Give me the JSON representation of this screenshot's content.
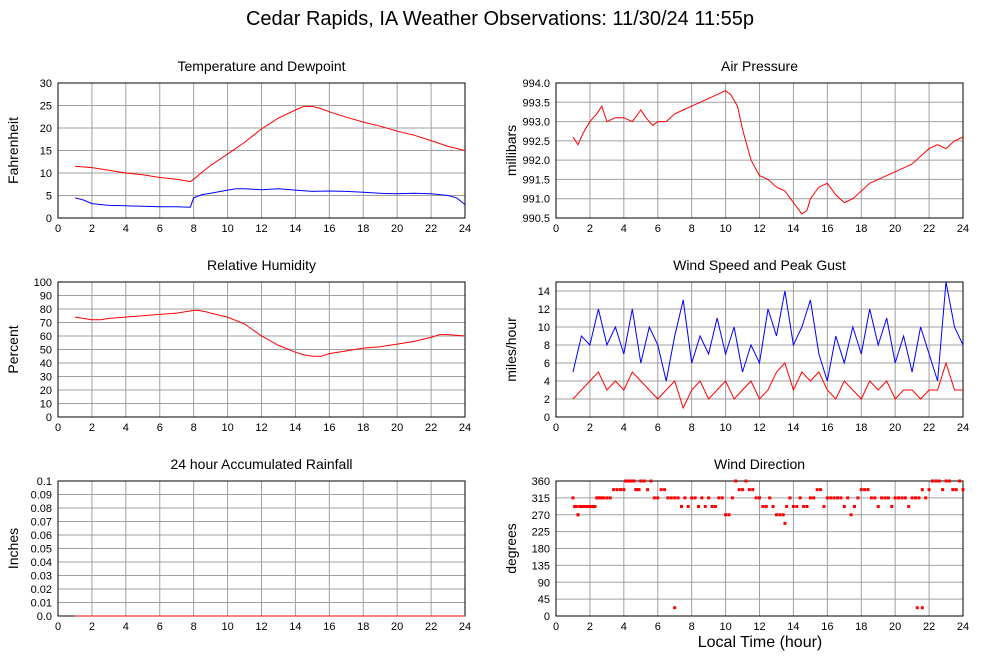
{
  "title": "Cedar Rapids, IA Weather Observations: 11/30/24 11:55p",
  "xlabel": "Local Time (hour)",
  "colors": {
    "red": "#ff0000",
    "blue": "#0000ff",
    "grid": "#a0a0a0"
  },
  "chart_data": [
    {
      "id": "temp",
      "type": "line",
      "title": "Temperature and Dewpoint",
      "ylabel": "Fahrenheit",
      "xlim": [
        0,
        24
      ],
      "ylim": [
        0,
        30
      ],
      "x_ticks": [
        0,
        2,
        4,
        6,
        8,
        10,
        12,
        14,
        16,
        18,
        20,
        22,
        24
      ],
      "y_ticks": [
        "0",
        "5",
        "10",
        "15",
        "20",
        "25",
        "30"
      ],
      "grid": true,
      "series": [
        {
          "color": "red",
          "x": [
            1,
            2,
            3,
            4,
            5,
            6,
            7,
            7.8,
            8,
            8.5,
            9,
            10,
            11,
            12,
            13,
            14,
            14.5,
            15,
            15.5,
            16,
            17,
            18,
            19,
            20,
            21,
            22,
            23,
            24
          ],
          "values": [
            11.5,
            11.2,
            10.6,
            10.0,
            9.6,
            9.0,
            8.6,
            8.1,
            8.6,
            10.2,
            11.7,
            14.2,
            16.8,
            19.8,
            22.2,
            24.0,
            24.8,
            24.8,
            24.3,
            23.6,
            22.4,
            21.3,
            20.4,
            19.3,
            18.4,
            17.2,
            15.9,
            15.0
          ]
        },
        {
          "color": "blue",
          "x": [
            1,
            1.5,
            2,
            3,
            4,
            5,
            6,
            7,
            7.8,
            8,
            8.5,
            9,
            10,
            10.5,
            11,
            12,
            13,
            14,
            15,
            16,
            17,
            18,
            19,
            20,
            21,
            22,
            23,
            23.5,
            24
          ],
          "values": [
            4.5,
            4.0,
            3.2,
            2.8,
            2.7,
            2.6,
            2.5,
            2.5,
            2.4,
            4.5,
            5.2,
            5.5,
            6.2,
            6.5,
            6.5,
            6.3,
            6.5,
            6.2,
            5.9,
            6.0,
            5.9,
            5.7,
            5.5,
            5.4,
            5.5,
            5.4,
            5.0,
            4.5,
            3.0
          ]
        }
      ]
    },
    {
      "id": "pres",
      "type": "line",
      "title": "Air Pressure",
      "ylabel": "millibars",
      "xlim": [
        0,
        24
      ],
      "ylim": [
        990.5,
        994.0
      ],
      "x_ticks": [
        0,
        2,
        4,
        6,
        8,
        10,
        12,
        14,
        16,
        18,
        20,
        22,
        24
      ],
      "y_ticks": [
        "990.5",
        "991.0",
        "991.5",
        "992.0",
        "992.5",
        "993.0",
        "993.5",
        "994.0"
      ],
      "grid": true,
      "series": [
        {
          "color": "red",
          "x": [
            1,
            1.3,
            1.6,
            2,
            2.4,
            2.7,
            3,
            3.5,
            4,
            4.5,
            5,
            5.3,
            5.7,
            6,
            6.5,
            7,
            7.5,
            8,
            8.5,
            9,
            9.5,
            10,
            10.3,
            10.7,
            11,
            11.5,
            12,
            12.5,
            13,
            13.5,
            14,
            14.5,
            14.8,
            15,
            15.5,
            16,
            16.5,
            17,
            17.5,
            18,
            18.5,
            19,
            19.5,
            20,
            20.5,
            21,
            21.5,
            22,
            22.5,
            23,
            23.5,
            24
          ],
          "values": [
            992.6,
            992.4,
            992.7,
            993.0,
            993.2,
            993.4,
            993.0,
            993.1,
            993.1,
            993.0,
            993.3,
            993.1,
            992.9,
            993.0,
            993.0,
            993.2,
            993.3,
            993.4,
            993.5,
            993.6,
            993.7,
            993.8,
            993.7,
            993.4,
            992.8,
            992.0,
            991.6,
            991.5,
            991.3,
            991.2,
            990.9,
            990.6,
            990.7,
            991.0,
            991.3,
            991.4,
            991.1,
            990.9,
            991.0,
            991.2,
            991.4,
            991.5,
            991.6,
            991.7,
            991.8,
            991.9,
            992.1,
            992.3,
            992.4,
            992.3,
            992.5,
            992.6
          ]
        }
      ]
    },
    {
      "id": "rh",
      "type": "line",
      "title": "Relative Humidity",
      "ylabel": "Percent",
      "xlim": [
        0,
        24
      ],
      "ylim": [
        0,
        100
      ],
      "x_ticks": [
        0,
        2,
        4,
        6,
        8,
        10,
        12,
        14,
        16,
        18,
        20,
        22,
        24
      ],
      "y_ticks": [
        "0",
        "10",
        "20",
        "30",
        "40",
        "50",
        "60",
        "70",
        "80",
        "90",
        "100"
      ],
      "grid": true,
      "series": [
        {
          "color": "red",
          "x": [
            1,
            1.5,
            2,
            2.5,
            3,
            4,
            5,
            6,
            7,
            7.5,
            8,
            8.3,
            8.7,
            9,
            10,
            11,
            12,
            13,
            14,
            14.5,
            15,
            15.5,
            16,
            17,
            18,
            19,
            20,
            21,
            22,
            22.5,
            23,
            24
          ],
          "values": [
            74,
            73,
            72,
            72,
            73,
            74,
            75,
            76,
            77,
            78,
            79,
            79,
            78,
            77,
            74,
            69,
            60,
            53,
            48,
            46,
            45,
            45,
            47,
            49,
            51,
            52,
            54,
            56,
            59,
            61,
            61,
            60
          ]
        }
      ]
    },
    {
      "id": "wind",
      "type": "line",
      "title": "Wind Speed and Peak Gust",
      "ylabel": "miles/hour",
      "xlim": [
        0,
        24
      ],
      "ylim": [
        0,
        15
      ],
      "x_ticks": [
        0,
        2,
        4,
        6,
        8,
        10,
        12,
        14,
        16,
        18,
        20,
        22,
        24
      ],
      "y_ticks": [
        "0",
        "2",
        "4",
        "6",
        "8",
        "10",
        "12",
        "14"
      ],
      "grid": true,
      "series": [
        {
          "color": "blue",
          "x": [
            1,
            1.5,
            2,
            2.5,
            3,
            3.5,
            4,
            4.5,
            5,
            5.5,
            6,
            6.5,
            7,
            7.5,
            8,
            8.5,
            9,
            9.5,
            10,
            10.5,
            11,
            11.5,
            12,
            12.5,
            13,
            13.5,
            14,
            14.5,
            15,
            15.5,
            16,
            16.5,
            17,
            17.5,
            18,
            18.5,
            19,
            19.5,
            20,
            20.5,
            21,
            21.5,
            22,
            22.5,
            23,
            23.5,
            24
          ],
          "values": [
            5,
            9,
            8,
            12,
            8,
            10,
            7,
            12,
            6,
            10,
            8,
            4,
            9,
            13,
            6,
            9,
            7,
            11,
            7,
            10,
            5,
            8,
            6,
            12,
            9,
            14,
            8,
            10,
            13,
            7,
            4,
            9,
            6,
            10,
            7,
            12,
            8,
            11,
            6,
            9,
            5,
            10,
            7,
            4,
            15,
            10,
            8
          ]
        },
        {
          "color": "red",
          "x": [
            1,
            1.5,
            2,
            2.5,
            3,
            3.5,
            4,
            4.5,
            5,
            5.5,
            6,
            6.5,
            7,
            7.5,
            8,
            8.5,
            9,
            9.5,
            10,
            10.5,
            11,
            11.5,
            12,
            12.5,
            13,
            13.5,
            14,
            14.5,
            15,
            15.5,
            16,
            16.5,
            17,
            17.5,
            18,
            18.5,
            19,
            19.5,
            20,
            20.5,
            21,
            21.5,
            22,
            22.5,
            23,
            23.5,
            24
          ],
          "values": [
            2,
            3,
            4,
            5,
            3,
            4,
            3,
            5,
            4,
            3,
            2,
            3,
            4,
            1,
            3,
            4,
            2,
            3,
            4,
            2,
            3,
            4,
            2,
            3,
            5,
            6,
            3,
            5,
            4,
            5,
            3,
            2,
            4,
            3,
            2,
            4,
            3,
            4,
            2,
            3,
            3,
            2,
            3,
            3,
            6,
            3,
            3
          ]
        }
      ]
    },
    {
      "id": "rain",
      "type": "line",
      "title": "24 hour Accumulated Rainfall",
      "ylabel": "Inches",
      "xlim": [
        0,
        24
      ],
      "ylim": [
        0,
        0.1
      ],
      "x_ticks": [
        0,
        2,
        4,
        6,
        8,
        10,
        12,
        14,
        16,
        18,
        20,
        22,
        24
      ],
      "y_ticks": [
        "0.0",
        "0.01",
        "0.02",
        "0.03",
        "0.04",
        "0.05",
        "0.06",
        "0.07",
        "0.08",
        "0.09",
        "0.1"
      ],
      "grid": true,
      "series": [
        {
          "color": "red",
          "x": [
            1,
            24
          ],
          "values": [
            0,
            0
          ]
        }
      ]
    },
    {
      "id": "dir",
      "type": "scatter",
      "title": "Wind Direction",
      "ylabel": "degrees",
      "xlim": [
        0,
        24
      ],
      "ylim": [
        0,
        360
      ],
      "x_ticks": [
        0,
        2,
        4,
        6,
        8,
        10,
        12,
        14,
        16,
        18,
        20,
        22,
        24
      ],
      "y_ticks": [
        "0",
        "45",
        "90",
        "135",
        "180",
        "225",
        "270",
        "315",
        "360"
      ],
      "grid": true,
      "series": [
        {
          "color": "red",
          "x": [
            1,
            1.1,
            1.2,
            1.3,
            1.4,
            1.5,
            1.6,
            1.7,
            1.8,
            1.9,
            2.0,
            2.1,
            2.2,
            2.3,
            2.4,
            2.5,
            2.6,
            2.7,
            2.8,
            3.0,
            3.2,
            3.4,
            3.6,
            3.8,
            4.0,
            4.1,
            4.2,
            4.3,
            4.4,
            4.5,
            4.6,
            4.7,
            4.8,
            4.9,
            5.0,
            5.2,
            5.4,
            5.6,
            5.8,
            6.0,
            6.2,
            6.4,
            6.6,
            6.8,
            7.0,
            7.2,
            7.4,
            7.6,
            7.8,
            8.0,
            8.2,
            8.4,
            8.6,
            8.8,
            9.0,
            9.2,
            9.4,
            9.6,
            9.8,
            10.0,
            10.2,
            10.4,
            10.6,
            10.8,
            11.0,
            11.2,
            11.4,
            11.6,
            11.8,
            12.0,
            12.2,
            12.4,
            12.6,
            12.8,
            13.0,
            13.2,
            13.4,
            13.6,
            13.8,
            14.0,
            14.2,
            14.4,
            14.6,
            14.8,
            15.0,
            15.2,
            15.4,
            15.6,
            15.8,
            16.0,
            16.2,
            16.4,
            16.6,
            16.8,
            17.0,
            17.2,
            17.4,
            17.6,
            17.8,
            18.0,
            18.2,
            18.4,
            18.6,
            18.8,
            19.0,
            19.2,
            19.4,
            19.6,
            19.8,
            20.0,
            20.2,
            20.4,
            20.6,
            20.8,
            21.0,
            21.2,
            21.4,
            21.6,
            21.8,
            22.0,
            22.2,
            22.4,
            22.6,
            22.8,
            23.0,
            23.2,
            23.4,
            23.6,
            23.8,
            24.0,
            7.0,
            21.3,
            21.6,
            1.3,
            1.6,
            13.5
          ],
          "values": [
            315,
            292,
            292,
            270,
            292,
            292,
            292,
            292,
            292,
            292,
            292,
            292,
            292,
            292,
            315,
            315,
            315,
            315,
            315,
            315,
            315,
            337,
            337,
            337,
            337,
            360,
            360,
            360,
            360,
            360,
            360,
            337,
            337,
            337,
            360,
            360,
            337,
            360,
            315,
            315,
            337,
            337,
            315,
            315,
            315,
            315,
            292,
            315,
            292,
            315,
            315,
            292,
            315,
            292,
            315,
            292,
            292,
            315,
            315,
            270,
            270,
            315,
            360,
            337,
            337,
            360,
            337,
            337,
            315,
            315,
            292,
            292,
            315,
            292,
            270,
            270,
            270,
            292,
            315,
            292,
            292,
            315,
            292,
            292,
            315,
            315,
            337,
            337,
            292,
            315,
            315,
            315,
            315,
            315,
            292,
            315,
            270,
            292,
            315,
            337,
            337,
            337,
            315,
            315,
            292,
            315,
            315,
            315,
            292,
            315,
            315,
            315,
            315,
            292,
            315,
            315,
            315,
            337,
            315,
            337,
            360,
            360,
            360,
            337,
            360,
            360,
            337,
            337,
            360,
            337,
            22,
            22,
            22,
            270,
            292,
            247
          ]
        }
      ]
    }
  ]
}
